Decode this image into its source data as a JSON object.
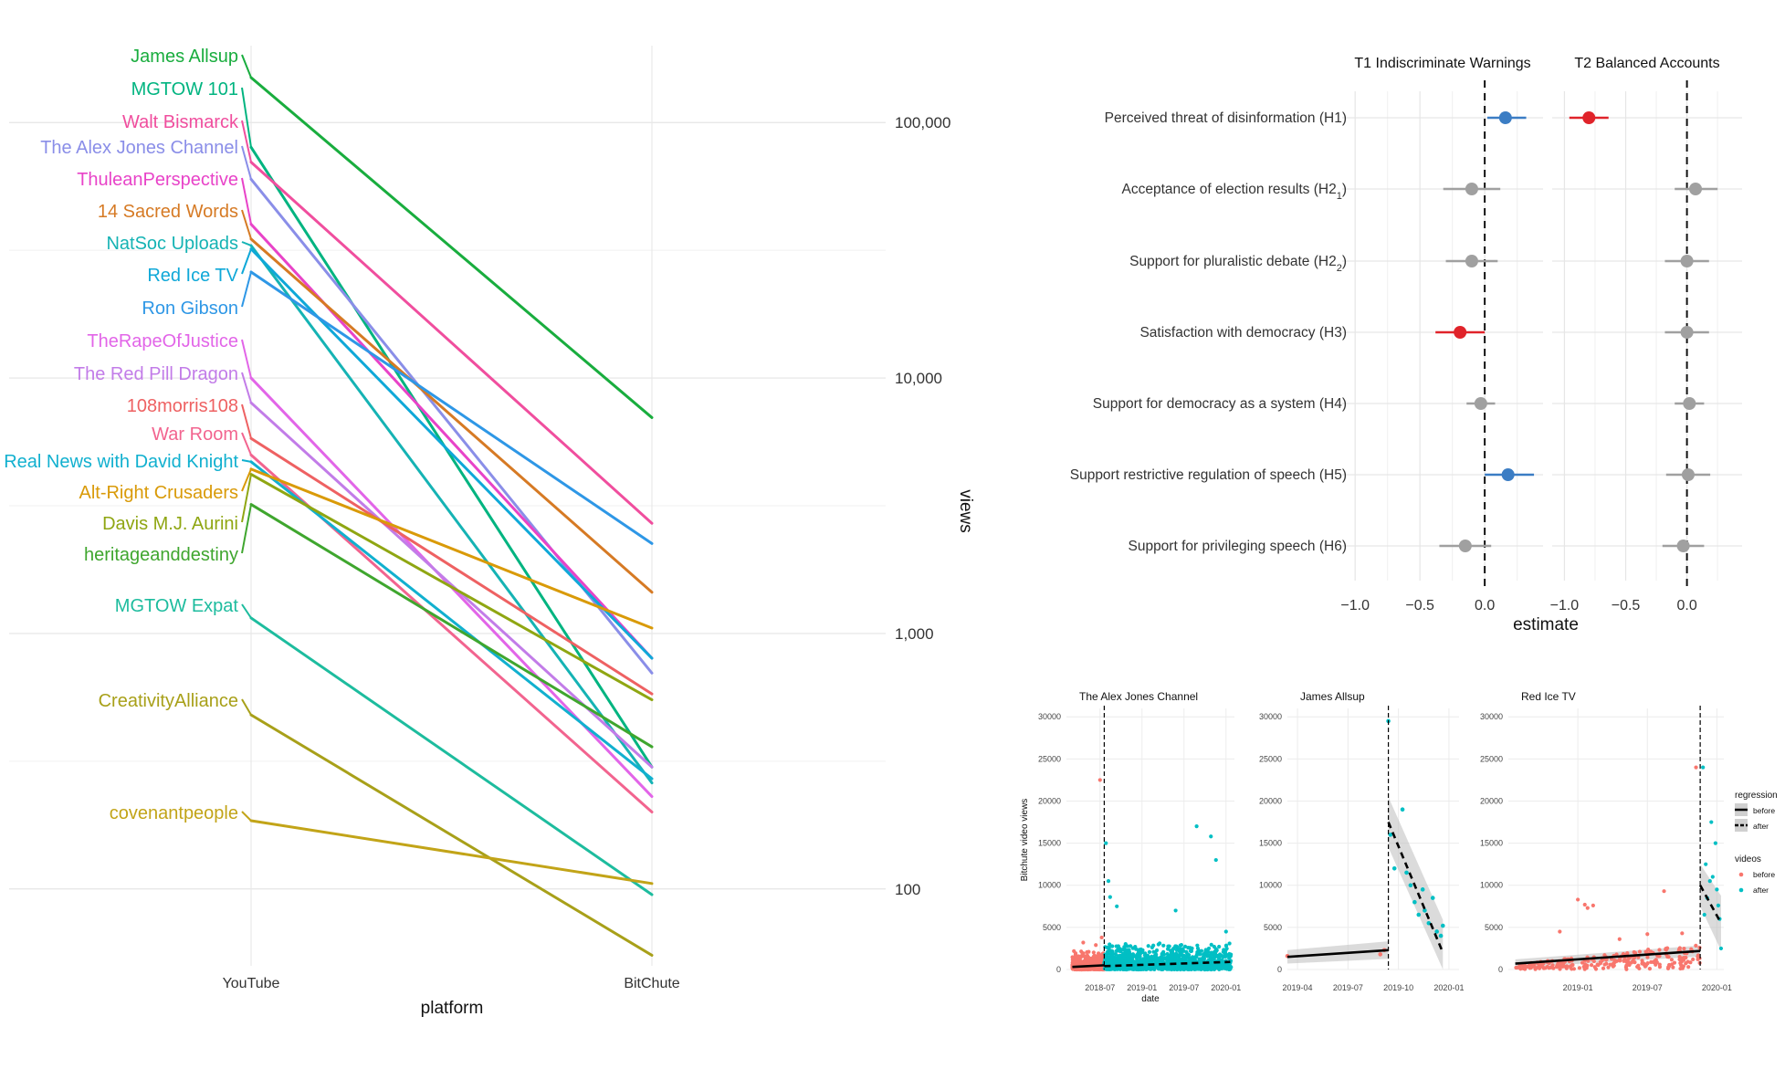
{
  "chart_data": [
    {
      "type": "line",
      "chart": "slope",
      "x": [
        "YouTube",
        "BitChute"
      ],
      "xlabel": "platform",
      "ylabel": "views",
      "yscale": "log",
      "ylim": [
        50,
        200000
      ],
      "yticks": [
        100,
        1000,
        10000,
        100000
      ],
      "ytick_labels": [
        "100",
        "1,000",
        "10,000",
        "100,000"
      ],
      "series": [
        {
          "name": "James Allsup",
          "color": "#19AD3E",
          "values": [
            150000,
            7000
          ]
        },
        {
          "name": "MGTOW 101",
          "color": "#00B480",
          "values": [
            80000,
            300
          ]
        },
        {
          "name": "Walt Bismarck",
          "color": "#F04E9E",
          "values": [
            70000,
            2700
          ]
        },
        {
          "name": "The Alex Jones Channel",
          "color": "#8A8EE8",
          "values": [
            60000,
            700
          ]
        },
        {
          "name": "ThuleanPerspective",
          "color": "#E843C8",
          "values": [
            40000,
            800
          ]
        },
        {
          "name": "14 Sacred Words",
          "color": "#D67A24",
          "values": [
            35000,
            1450
          ]
        },
        {
          "name": "NatSoc Uploads",
          "color": "#15B3B4",
          "values": [
            33000,
            260
          ]
        },
        {
          "name": "Red Ice TV",
          "color": "#0FA8D8",
          "values": [
            32000,
            800
          ]
        },
        {
          "name": "Ron Gibson",
          "color": "#2E97E6",
          "values": [
            26000,
            2250
          ]
        },
        {
          "name": "TheRapeOfJustice",
          "color": "#E265E8",
          "values": [
            10000,
            230
          ]
        },
        {
          "name": "The Red Pill Dragon",
          "color": "#C27CE8",
          "values": [
            8000,
            300
          ]
        },
        {
          "name": "108morris108",
          "color": "#EE6162",
          "values": [
            5800,
            580
          ]
        },
        {
          "name": "War Room",
          "color": "#F2648F",
          "values": [
            5000,
            200
          ]
        },
        {
          "name": "Real News with David Knight",
          "color": "#11B0CF",
          "values": [
            4700,
            270
          ]
        },
        {
          "name": "Alt-Right Crusaders",
          "color": "#D99A08",
          "values": [
            4400,
            1050
          ]
        },
        {
          "name": "Davis M.J. Aurini",
          "color": "#8FA612",
          "values": [
            4200,
            550
          ]
        },
        {
          "name": "heritageanddestiny",
          "color": "#3FA62E",
          "values": [
            3200,
            360
          ]
        },
        {
          "name": "MGTOW Expat",
          "color": "#1DBC9E",
          "values": [
            1150,
            95
          ]
        },
        {
          "name": "CreativityAlliance",
          "color": "#A8A019",
          "values": [
            480,
            55
          ]
        },
        {
          "name": "covenantpeople",
          "color": "#C2A418",
          "values": [
            185,
            105
          ]
        }
      ]
    },
    {
      "type": "scatter",
      "chart": "coefficient-plot",
      "xlabel": "estimate",
      "xlim": [
        -1.1,
        0.45
      ],
      "xticks": [
        -1.0,
        -0.5,
        0.0
      ],
      "xtick_labels": [
        "−1.0",
        "−0.5",
        "0.0"
      ],
      "categories": [
        "Perceived threat of disinformation (H1)",
        "Acceptance of election results (H2",
        "Support for pluralistic debate (H2",
        "Satisfaction with democracy (H3)",
        "Support for democracy as a system (H4)",
        "Support restrictive regulation of speech (H5)",
        "Support for privileging speech (H6)"
      ],
      "category_subscripts": [
        "",
        "1",
        "2",
        "",
        "",
        "",
        ""
      ],
      "category_suffix": [
        "",
        ")",
        ")",
        "",
        "",
        "",
        ""
      ],
      "panels": [
        {
          "title": "T1 Indiscriminate Warnings",
          "estimates": [
            0.16,
            -0.1,
            -0.1,
            -0.19,
            -0.03,
            0.18,
            -0.15
          ],
          "ci_low": [
            0.02,
            -0.32,
            -0.3,
            -0.38,
            -0.14,
            0.0,
            -0.35
          ],
          "ci_high": [
            0.32,
            0.12,
            0.1,
            0.0,
            0.08,
            0.38,
            0.05
          ],
          "colors": [
            "#3B7DC4",
            "#A0A0A0",
            "#A0A0A0",
            "#E0232A",
            "#A0A0A0",
            "#3B7DC4",
            "#A0A0A0"
          ]
        },
        {
          "title": "T2 Balanced Accounts",
          "estimates": [
            -0.8,
            0.07,
            0.0,
            0.0,
            0.02,
            0.01,
            -0.03
          ],
          "ci_low": [
            -0.96,
            -0.1,
            -0.18,
            -0.18,
            -0.1,
            -0.17,
            -0.2
          ],
          "ci_high": [
            -0.64,
            0.25,
            0.18,
            0.18,
            0.14,
            0.19,
            0.14
          ],
          "colors": [
            "#E0232A",
            "#A0A0A0",
            "#A0A0A0",
            "#A0A0A0",
            "#A0A0A0",
            "#A0A0A0",
            "#A0A0A0"
          ]
        }
      ]
    },
    {
      "type": "scatter",
      "chart": "interrupted-time-series",
      "ylabel": "Bitchute video views",
      "xlabel": "date",
      "ylim": [
        0,
        31000
      ],
      "yticks": [
        0,
        5000,
        10000,
        15000,
        20000,
        25000,
        30000
      ],
      "legend": {
        "regression_title": "regression",
        "regression_items": [
          "before",
          "after"
        ],
        "videos_title": "videos",
        "videos_items": [
          "before",
          "after"
        ],
        "before_color": "#F8766D",
        "after_color": "#00BFC4",
        "placement": "right"
      },
      "panels": [
        {
          "title": "The Alex Jones Channel",
          "xticks": [
            "2018-07",
            "2019-01",
            "2019-07",
            "2020-01"
          ],
          "xrange": [
            2018.1,
            2020.1
          ],
          "cutoff": 2018.55,
          "reg_before": [
            [
              2018.17,
              300
            ],
            [
              2018.55,
              500
            ]
          ],
          "reg_after": [
            [
              2018.55,
              400
            ],
            [
              2020.05,
              900
            ]
          ],
          "band_before": 200,
          "band_after": 200,
          "outliers_before": [
            [
              2018.5,
              22500
            ],
            [
              2018.52,
              3800
            ],
            [
              2018.3,
              3200
            ],
            [
              2018.45,
              2900
            ]
          ],
          "outliers_after": [
            [
              2018.57,
              15000
            ],
            [
              2018.6,
              10500
            ],
            [
              2018.62,
              8600
            ],
            [
              2018.7,
              7500
            ],
            [
              2019.4,
              7000
            ],
            [
              2019.65,
              17000
            ],
            [
              2019.82,
              15800
            ],
            [
              2019.88,
              13000
            ],
            [
              2020.0,
              4500
            ]
          ]
        },
        {
          "title": "James Allsup",
          "xticks": [
            "2019-04",
            "2019-07",
            "2019-10",
            "2020-01"
          ],
          "xrange": [
            2019.2,
            2020.05
          ],
          "cutoff": 2019.7,
          "reg_before": [
            [
              2019.2,
              1500
            ],
            [
              2019.7,
              2300
            ]
          ],
          "reg_after": [
            [
              2019.7,
              17500
            ],
            [
              2019.97,
              2000
            ]
          ],
          "band_before": 800,
          "band_after": 3000,
          "points_before": [
            [
              2019.2,
              1600
            ],
            [
              2019.66,
              1800
            ],
            [
              2019.68,
              2300
            ]
          ],
          "points_after": [
            [
              2019.7,
              29500
            ],
            [
              2019.71,
              16000
            ],
            [
              2019.73,
              12000
            ],
            [
              2019.77,
              19000
            ],
            [
              2019.79,
              11500
            ],
            [
              2019.81,
              10000
            ],
            [
              2019.83,
              8000
            ],
            [
              2019.85,
              6500
            ],
            [
              2019.87,
              9500
            ],
            [
              2019.88,
              7000
            ],
            [
              2019.9,
              5500
            ],
            [
              2019.92,
              8500
            ],
            [
              2019.94,
              4500
            ],
            [
              2019.96,
              4000
            ],
            [
              2019.97,
              5200
            ]
          ]
        },
        {
          "title": "Red Ice TV",
          "xticks": [
            "2019-01",
            "2019-07",
            "2020-01"
          ],
          "xrange": [
            2018.5,
            2020.05
          ],
          "cutoff": 2019.88,
          "reg_before": [
            [
              2018.55,
              700
            ],
            [
              2019.88,
              2200
            ]
          ],
          "reg_after": [
            [
              2019.88,
              10000
            ],
            [
              2020.03,
              5500
            ]
          ],
          "band_before": 500,
          "band_after": 2500,
          "points_before_extra": [
            [
              2019.85,
              24000
            ],
            [
              2019.62,
              9300
            ],
            [
              2019.0,
              8300
            ],
            [
              2019.05,
              7700
            ],
            [
              2019.07,
              7300
            ],
            [
              2019.11,
              7600
            ],
            [
              2018.87,
              4500
            ],
            [
              2019.3,
              3600
            ],
            [
              2019.5,
              4200
            ],
            [
              2019.75,
              4300
            ]
          ],
          "points_after": [
            [
              2019.9,
              24000
            ],
            [
              2019.92,
              12500
            ],
            [
              2019.96,
              17500
            ],
            [
              2019.99,
              15000
            ],
            [
              2020.0,
              9500
            ],
            [
              2019.93,
              8500
            ],
            [
              2019.95,
              10500
            ],
            [
              2020.01,
              7600
            ],
            [
              2020.02,
              6000
            ],
            [
              2020.03,
              2500
            ],
            [
              2019.91,
              6500
            ],
            [
              2019.97,
              11000
            ]
          ]
        }
      ]
    }
  ]
}
